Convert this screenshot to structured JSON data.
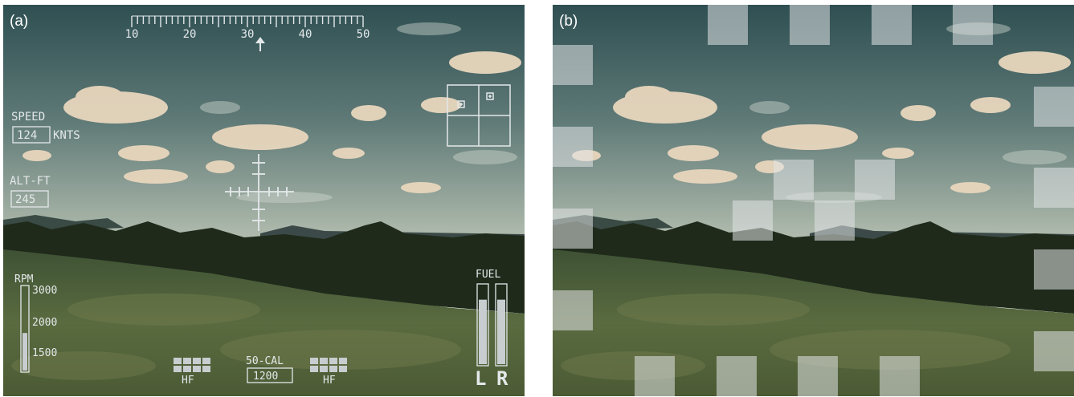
{
  "panel_a": {
    "label": "(a)",
    "heading_scale": {
      "ticks": [
        "10",
        "20",
        "30",
        "40",
        "50"
      ]
    },
    "speed": {
      "label": "SPEED",
      "value": "124",
      "unit": "KNTS"
    },
    "altitude": {
      "label": "ALT-FT",
      "value": "245"
    },
    "rpm": {
      "label": "RPM",
      "ticks": [
        "3000",
        "2000",
        "1500"
      ],
      "level": 0.45
    },
    "fuel": {
      "label": "FUEL",
      "gauges": [
        "L",
        "R"
      ],
      "left_level": 0.82,
      "right_level": 0.82
    },
    "weapons": {
      "left": "HF",
      "center_label": "50-CAL",
      "center_value": "1200",
      "right": "HF"
    }
  },
  "panel_b": {
    "label": "(b)"
  },
  "colors": {
    "hud": "#e4e8ea",
    "sky_top": "#2f4f52",
    "sky_horizon": "#a9b6aa",
    "trees": "#1f2a1b",
    "grass": "#55663f",
    "cloud": "#e8d6bd"
  }
}
